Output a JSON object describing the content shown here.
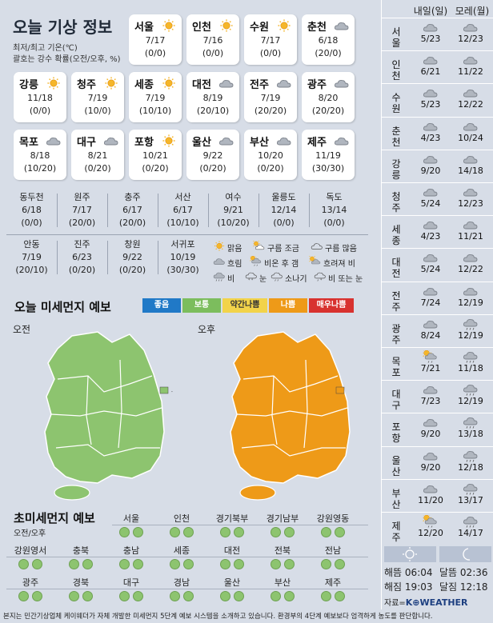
{
  "title": "오늘 기상 정보",
  "subtitle_1": "최저/최고 기온(℃)",
  "subtitle_2": "괄호는 강수 확률(오전/오후, %)",
  "big_cities": [
    {
      "name": "서울",
      "icon": "sun",
      "temp": "7/17",
      "prob": "(0/0)"
    },
    {
      "name": "인천",
      "icon": "sun",
      "temp": "7/16",
      "prob": "(0/0)"
    },
    {
      "name": "수원",
      "icon": "sun",
      "temp": "7/17",
      "prob": "(0/0)"
    },
    {
      "name": "춘천",
      "icon": "cloud",
      "temp": "6/18",
      "prob": "(20/0)"
    },
    {
      "name": "강릉",
      "icon": "sun",
      "temp": "11/18",
      "prob": "(0/0)"
    },
    {
      "name": "청주",
      "icon": "sun",
      "temp": "7/19",
      "prob": "(10/0)"
    },
    {
      "name": "세종",
      "icon": "sun",
      "temp": "7/19",
      "prob": "(10/10)"
    },
    {
      "name": "대전",
      "icon": "cloud",
      "temp": "8/19",
      "prob": "(20/10)"
    },
    {
      "name": "전주",
      "icon": "cloud",
      "temp": "7/19",
      "prob": "(20/20)"
    },
    {
      "name": "광주",
      "icon": "cloud",
      "temp": "8/20",
      "prob": "(20/20)"
    },
    {
      "name": "목포",
      "icon": "cloud",
      "temp": "8/18",
      "prob": "(10/20)"
    },
    {
      "name": "대구",
      "icon": "cloud",
      "temp": "8/21",
      "prob": "(0/20)"
    },
    {
      "name": "포항",
      "icon": "sun",
      "temp": "10/21",
      "prob": "(0/20)"
    },
    {
      "name": "울산",
      "icon": "cloud",
      "temp": "9/22",
      "prob": "(0/20)"
    },
    {
      "name": "부산",
      "icon": "cloud",
      "temp": "10/20",
      "prob": "(0/20)"
    },
    {
      "name": "제주",
      "icon": "cloud",
      "temp": "11/19",
      "prob": "(30/30)"
    }
  ],
  "small_cities_row1": [
    {
      "name": "동두천",
      "temp": "6/18",
      "prob": "(0/0)"
    },
    {
      "name": "원주",
      "temp": "7/17",
      "prob": "(20/0)"
    },
    {
      "name": "충주",
      "temp": "6/17",
      "prob": "(20/0)"
    },
    {
      "name": "서산",
      "temp": "6/17",
      "prob": "(10/10)"
    },
    {
      "name": "여수",
      "temp": "9/21",
      "prob": "(10/20)"
    },
    {
      "name": "울릉도",
      "temp": "12/14",
      "prob": "(0/0)"
    },
    {
      "name": "독도",
      "temp": "13/14",
      "prob": "(0/0)"
    }
  ],
  "small_cities_row2": [
    {
      "name": "안동",
      "temp": "7/19",
      "prob": "(20/10)"
    },
    {
      "name": "진주",
      "temp": "6/23",
      "prob": "(0/20)"
    },
    {
      "name": "창원",
      "temp": "9/22",
      "prob": "(0/20)"
    },
    {
      "name": "서귀포",
      "temp": "10/19",
      "prob": "(30/30)"
    }
  ],
  "legend": [
    {
      "icon": "sun",
      "label": "맑음"
    },
    {
      "icon": "suncloud",
      "label": "구름 조금"
    },
    {
      "icon": "cloud-outline",
      "label": "구름 많음"
    },
    {
      "icon": "cloud",
      "label": "흐림"
    },
    {
      "icon": "sun-rain",
      "label": "비온 후 갬"
    },
    {
      "icon": "sun-cloud-after",
      "label": "흐려져 비"
    },
    {
      "icon": "rain",
      "label": "비"
    },
    {
      "icon": "snow",
      "label": "눈"
    },
    {
      "icon": "shower",
      "label": "소나기"
    },
    {
      "icon": "rain-snow",
      "label": "비 또는 눈"
    }
  ],
  "dust_title": "오늘 미세먼지 예보",
  "dust_levels": [
    {
      "label": "좋음",
      "color": "#2079c7"
    },
    {
      "label": "보통",
      "color": "#7cbd5d"
    },
    {
      "label": "약간나쁨",
      "color": "#f2d34a",
      "text": "#333"
    },
    {
      "label": "나쁨",
      "color": "#ee9a18"
    },
    {
      "label": "매우나쁨",
      "color": "#d8322f"
    }
  ],
  "map_am_label": "오전",
  "map_pm_label": "오후",
  "fine_title": "초미세먼지 예보",
  "fine_sub": "오전/오후",
  "fine_rows": [
    [
      "서울",
      "인천",
      "경기북부",
      "경기남부",
      "강원영동"
    ],
    [
      "강원영서",
      "충북",
      "충남",
      "세종",
      "대전",
      "전북",
      "전남"
    ],
    [
      "광주",
      "경북",
      "대구",
      "경남",
      "울산",
      "부산",
      "제주"
    ]
  ],
  "right_header": {
    "tomorrow": "내일(일)",
    "after": "모레(월)"
  },
  "right_rows": [
    {
      "city": "서울",
      "d1": "5/23",
      "d2": "12/23",
      "i1": "cloud",
      "i2": "cloud"
    },
    {
      "city": "인천",
      "d1": "6/21",
      "d2": "11/22",
      "i1": "cloud",
      "i2": "cloud"
    },
    {
      "city": "수원",
      "d1": "5/23",
      "d2": "12/22",
      "i1": "cloud",
      "i2": "cloud"
    },
    {
      "city": "춘천",
      "d1": "4/23",
      "d2": "10/24",
      "i1": "cloud",
      "i2": "cloud"
    },
    {
      "city": "강릉",
      "d1": "9/20",
      "d2": "14/18",
      "i1": "cloud",
      "i2": "cloud"
    },
    {
      "city": "청주",
      "d1": "5/24",
      "d2": "12/23",
      "i1": "cloud",
      "i2": "cloud"
    },
    {
      "city": "세종",
      "d1": "4/23",
      "d2": "11/21",
      "i1": "cloud",
      "i2": "cloud"
    },
    {
      "city": "대전",
      "d1": "5/24",
      "d2": "12/22",
      "i1": "cloud",
      "i2": "cloud"
    },
    {
      "city": "전주",
      "d1": "7/24",
      "d2": "12/19",
      "i1": "cloud",
      "i2": "cloud"
    },
    {
      "city": "광주",
      "d1": "8/24",
      "d2": "12/19",
      "i1": "cloud",
      "i2": "rain"
    },
    {
      "city": "목포",
      "d1": "7/21",
      "d2": "11/18",
      "i1": "sun-rain",
      "i2": "rain"
    },
    {
      "city": "대구",
      "d1": "7/23",
      "d2": "12/19",
      "i1": "cloud",
      "i2": "rain"
    },
    {
      "city": "포항",
      "d1": "9/20",
      "d2": "13/18",
      "i1": "cloud",
      "i2": "rain"
    },
    {
      "city": "울산",
      "d1": "9/20",
      "d2": "12/18",
      "i1": "cloud",
      "i2": "rain"
    },
    {
      "city": "부산",
      "d1": "11/20",
      "d2": "13/17",
      "i1": "cloud",
      "i2": "rain"
    },
    {
      "city": "제주",
      "d1": "12/20",
      "d2": "14/17",
      "i1": "sun-rain",
      "i2": "rain"
    }
  ],
  "sun": {
    "rise_label": "해뜸",
    "rise": "06:04",
    "set_label": "해짐",
    "set": "19:03"
  },
  "moon": {
    "rise_label": "달뜸",
    "rise": "02:36",
    "set_label": "달짐",
    "set": "12:18"
  },
  "source_prefix": "자료=",
  "source_brand": "K⊕WEATHER",
  "footer": "본지는 민간기상업체 케이웨더가 자체 개발한 미세먼지 5단계 예보 시스템을 소개하고 있습니다. 환경부의 4단계 예보보다 엄격하게 농도를 판단합니다."
}
